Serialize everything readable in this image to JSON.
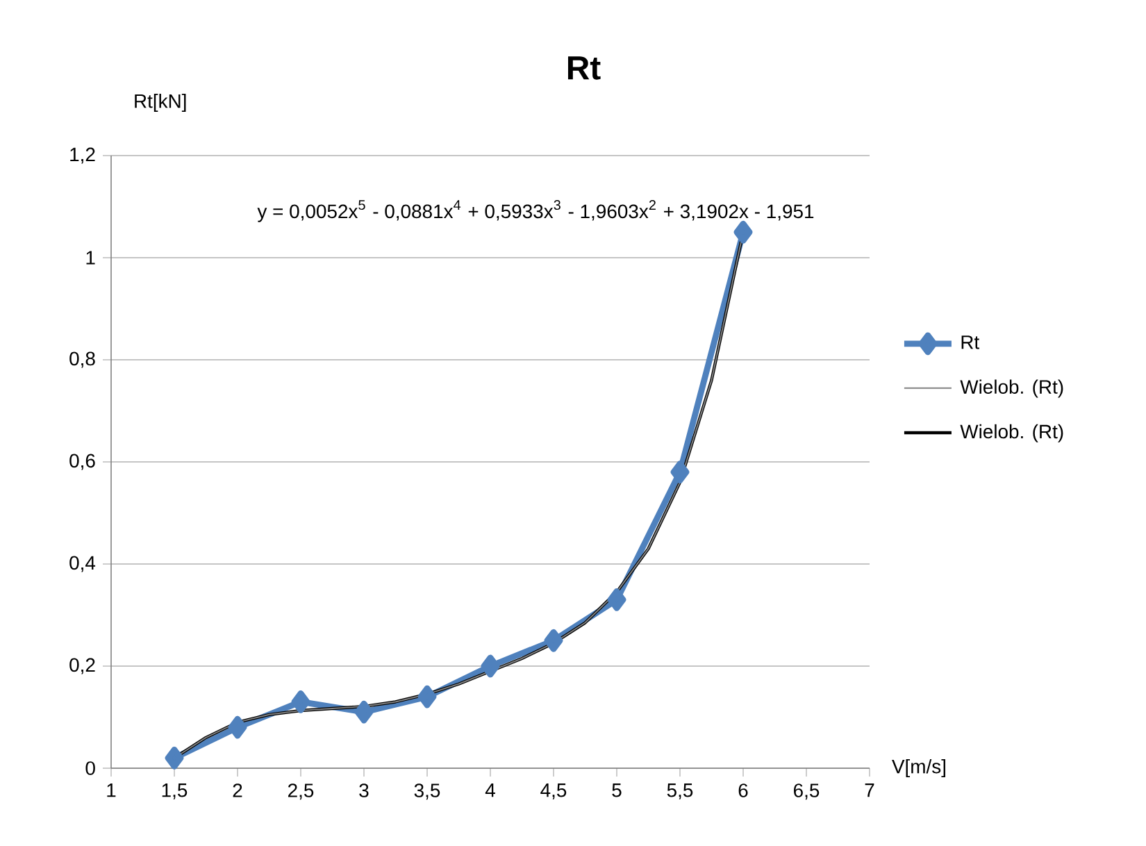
{
  "chart_data": {
    "type": "line",
    "title": "Rt",
    "xlabel": "V[m/s]",
    "ylabel": "Rt[kN]",
    "xlim": [
      1,
      7
    ],
    "ylim": [
      0,
      1.2
    ],
    "xticks": [
      1,
      {
        "value": 1.5,
        "label": "1,5"
      },
      2,
      {
        "value": 2.5,
        "label": "2,5"
      },
      3,
      {
        "value": 3.5,
        "label": "3,5"
      },
      4,
      {
        "value": 4.5,
        "label": "4,5"
      },
      5,
      {
        "value": 5.5,
        "label": "5,5"
      },
      6,
      {
        "value": 6.5,
        "label": "6,5"
      },
      7
    ],
    "yticks": [
      0,
      {
        "value": 0.2,
        "label": "0,2"
      },
      {
        "value": 0.4,
        "label": "0,4"
      },
      {
        "value": 0.6,
        "label": "0,6"
      },
      {
        "value": 0.8,
        "label": "0,8"
      },
      1,
      {
        "value": 1.2,
        "label": "1,2"
      }
    ],
    "grid": "y",
    "legend": "right",
    "annotations": [
      "y = 0,0052x$^{5}$ - 0,0881x$^{4}$ + 0,5933x$^{3}$ - 1,9603x$^{2}$ + 3,1902x - 1,951"
    ],
    "series": [
      {
        "name": "Rt",
        "color": "#4f81bd",
        "marker": "diamond",
        "x": [
          1.5,
          2,
          2.5,
          3,
          3.5,
          4,
          4.5,
          5,
          5.5,
          6
        ],
        "values": [
          0.02,
          0.08,
          0.13,
          0.11,
          0.14,
          0.2,
          0.25,
          0.33,
          0.58,
          1.05
        ]
      },
      {
        "name": "Wielob. (Rt)",
        "color": "#808080",
        "x": [
          1.5,
          1.75,
          2,
          2.25,
          2.5,
          2.75,
          3,
          3.25,
          3.5,
          3.75,
          4,
          4.25,
          4.5,
          4.75,
          5,
          5.25,
          5.5,
          5.75,
          6
        ],
        "values": [
          0.02,
          0.06,
          0.09,
          0.105,
          0.113,
          0.117,
          0.121,
          0.13,
          0.145,
          0.165,
          0.19,
          0.215,
          0.245,
          0.285,
          0.345,
          0.43,
          0.56,
          0.76,
          1.05
        ]
      },
      {
        "name": "Wielob. (Rt)",
        "color": "#000000",
        "x": [
          1.5,
          1.75,
          2,
          2.25,
          2.5,
          2.75,
          3,
          3.25,
          3.5,
          3.75,
          4,
          4.25,
          4.5,
          4.75,
          5,
          5.25,
          5.5,
          5.75,
          6
        ],
        "values": [
          0.02,
          0.06,
          0.09,
          0.105,
          0.113,
          0.117,
          0.121,
          0.13,
          0.145,
          0.165,
          0.19,
          0.215,
          0.245,
          0.285,
          0.345,
          0.43,
          0.56,
          0.76,
          1.05
        ]
      }
    ]
  }
}
